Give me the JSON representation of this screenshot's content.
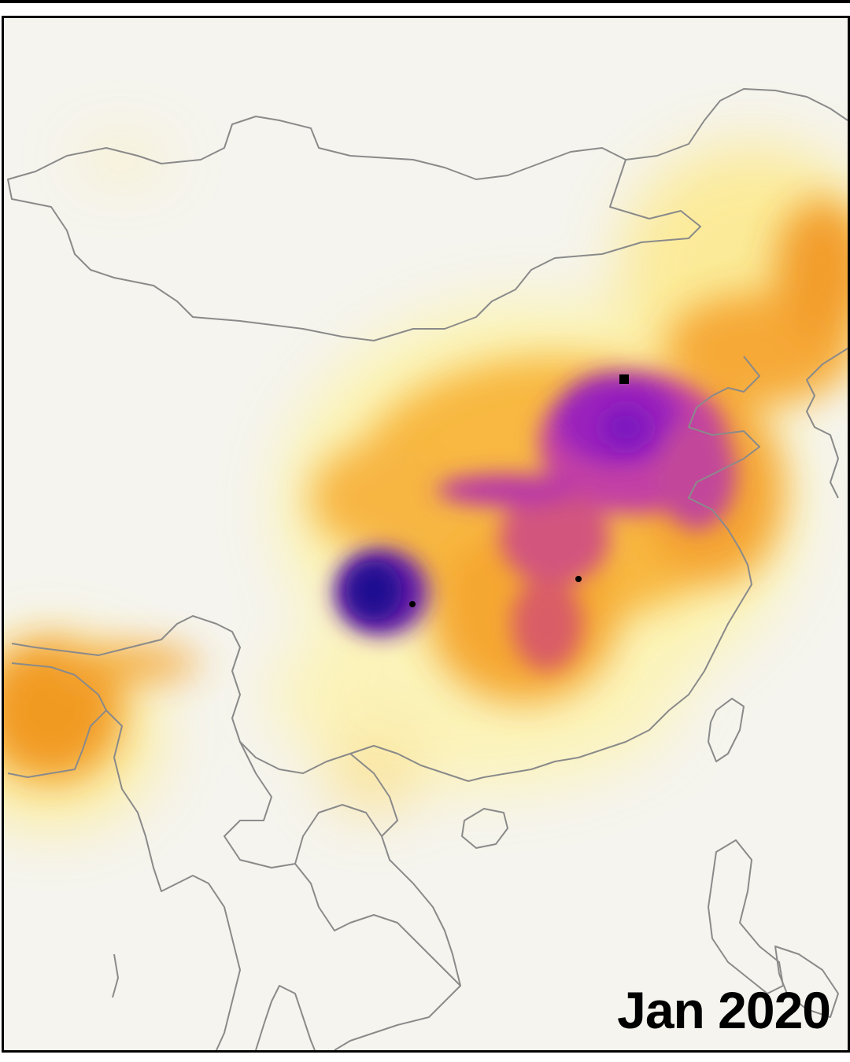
{
  "map": {
    "date_label": "Jan 2020",
    "colors": {
      "background": "#f5f4ee",
      "low": "#fdf6c0",
      "mid": "#f5a32a",
      "high": "#9c1fb8",
      "peak": "#1a0682",
      "borders": "#8a8a8a"
    },
    "markers": [
      {
        "shape": "square"
      },
      {
        "shape": "dot"
      },
      {
        "shape": "dot"
      }
    ]
  }
}
